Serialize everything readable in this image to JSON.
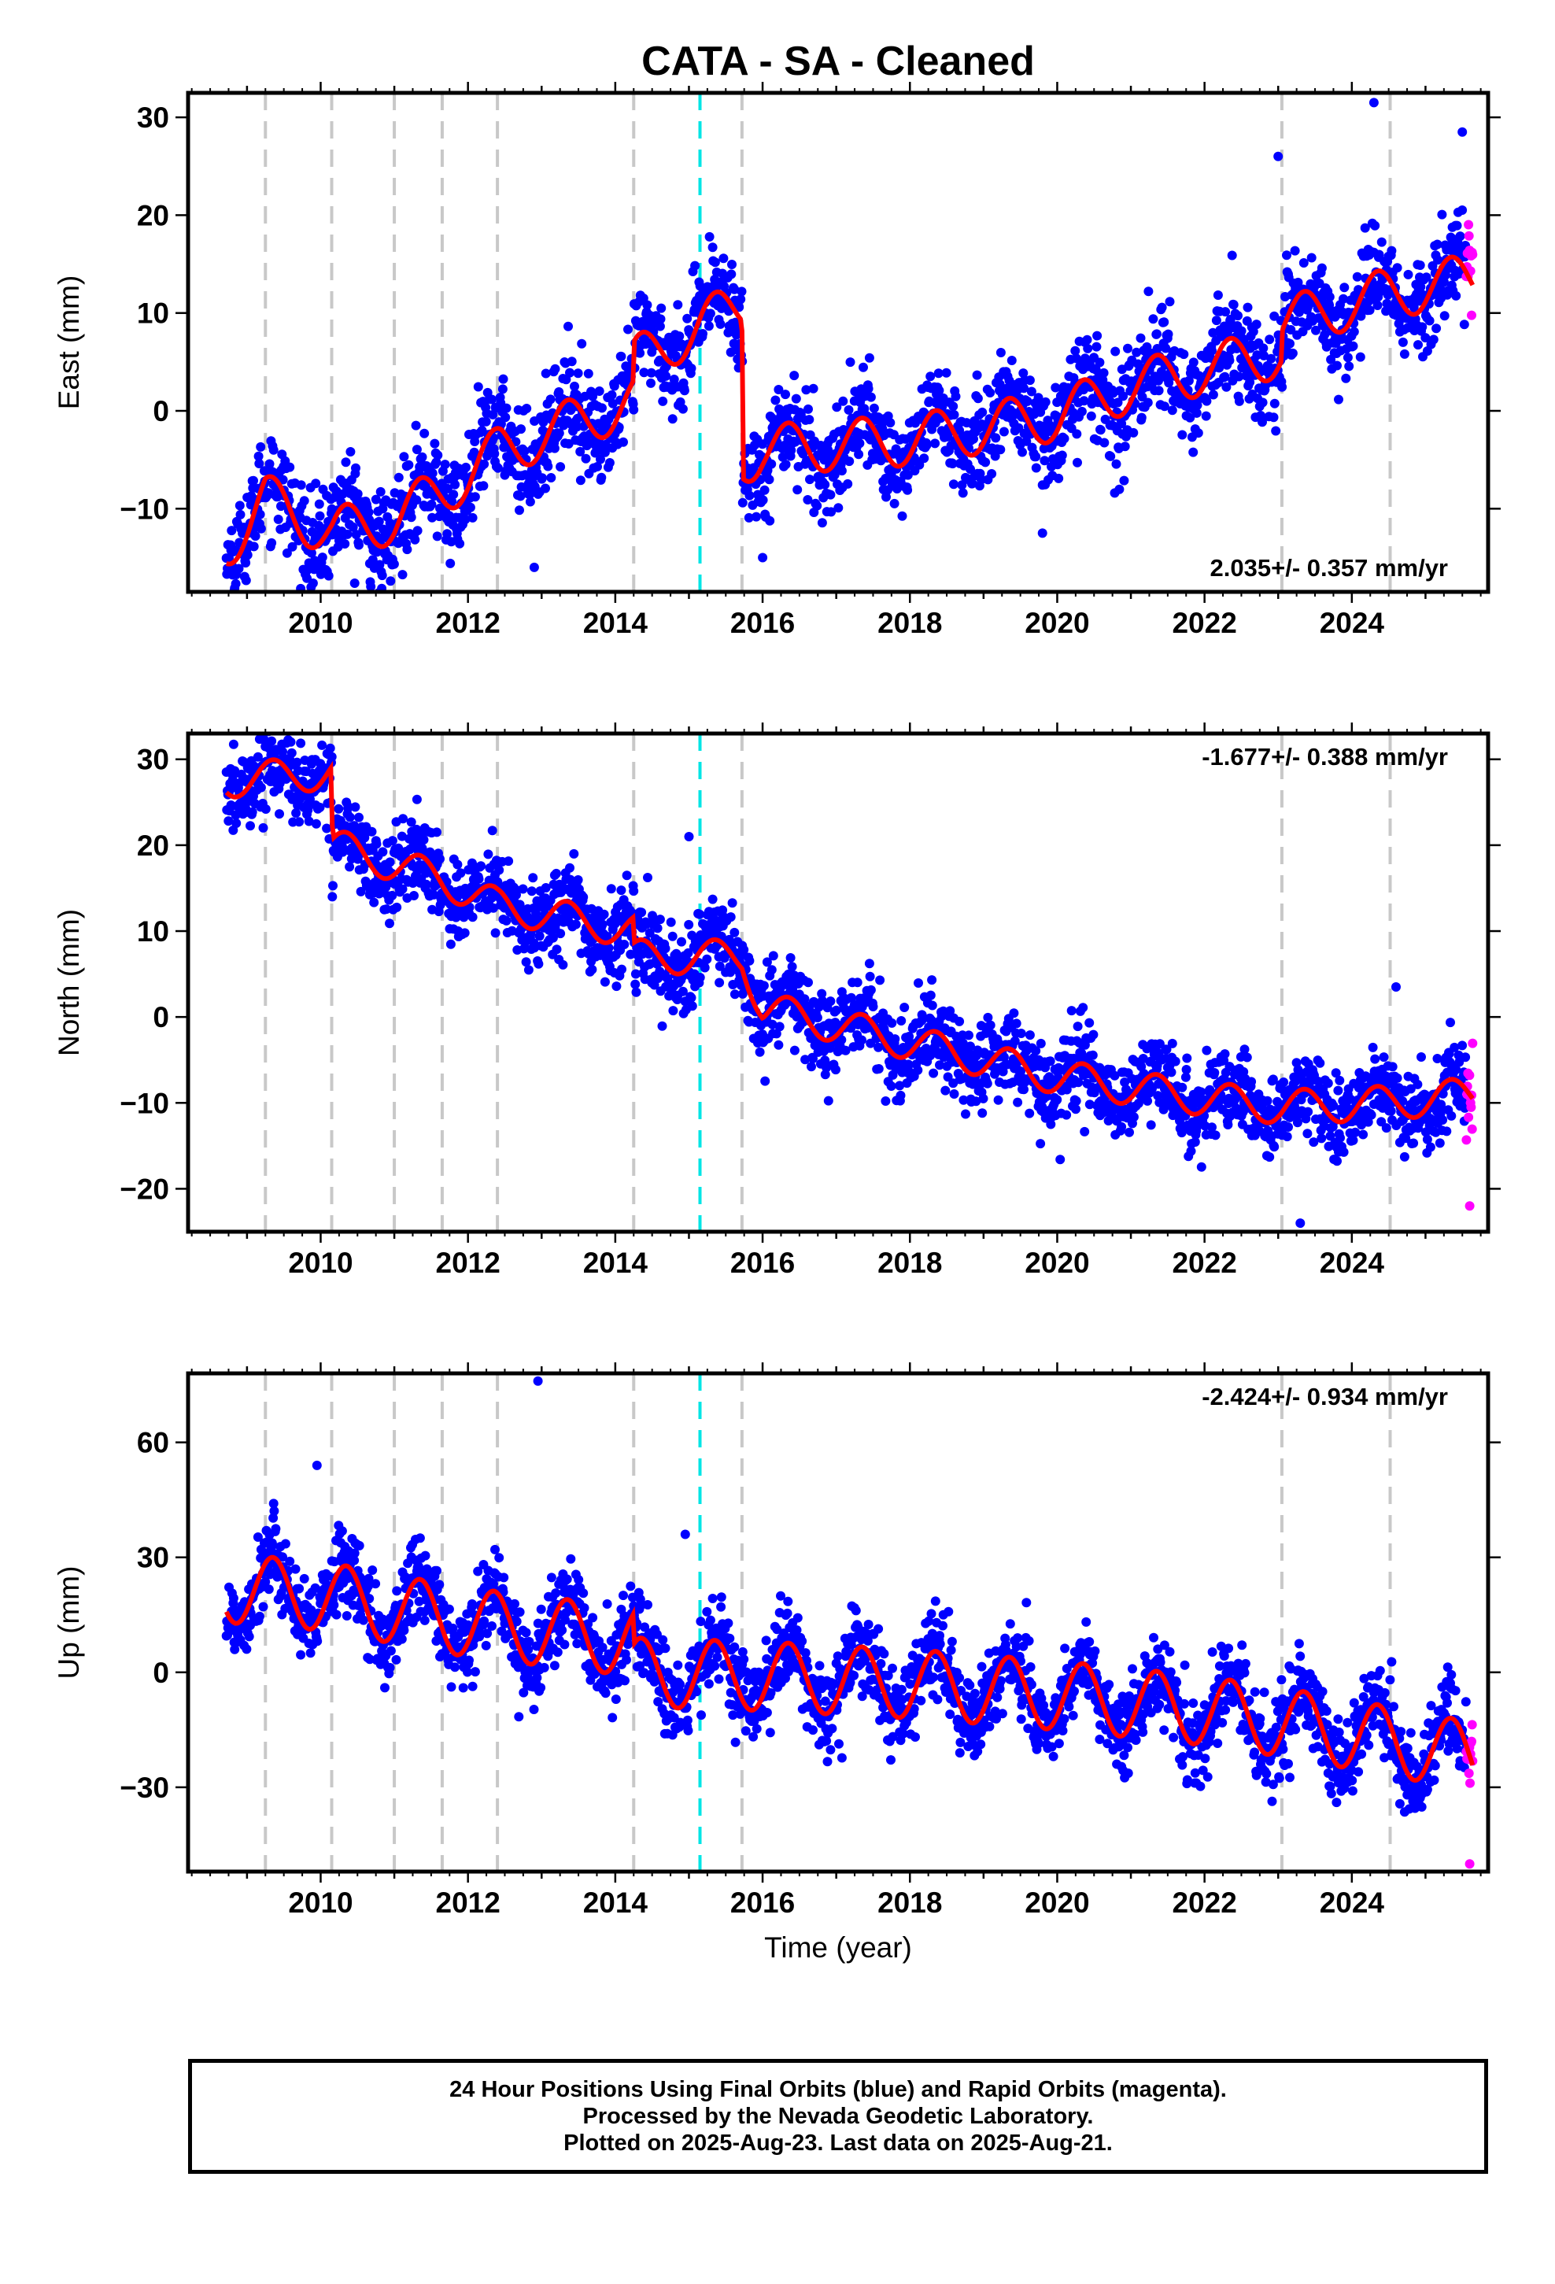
{
  "title": "CATA  - SA - Cleaned",
  "colors": {
    "final": "#0000ff",
    "rapid": "#ff00ff",
    "model": "#ff0000",
    "offset": "#c8c8c8",
    "equipment": "#00e5e5"
  },
  "xlabel": "Time (year)",
  "caption": [
    "24 Hour Positions Using Final Orbits (blue) and Rapid Orbits (magenta).",
    "Processed by the Nevada Geodetic Laboratory.",
    "Plotted on 2025-Aug-23. Last data on 2025-Aug-21."
  ],
  "chart_data": [
    {
      "type": "scatter",
      "ylabel": "East (mm)",
      "xlim": [
        2008.2,
        2025.85
      ],
      "ylim": [
        -18.5,
        32.5
      ],
      "xticks": [
        "2010",
        "2012",
        "2014",
        "2016",
        "2018",
        "2020",
        "2022",
        "2024"
      ],
      "yticks": [
        "−10",
        "0",
        "10",
        "20",
        "30"
      ],
      "ytick_values": [
        -10,
        0,
        10,
        20,
        30
      ],
      "rate_text": "2.035+/- 0.357 mm/yr",
      "rate_position": "bottom-right",
      "time_range": [
        2008.72,
        2025.64
      ],
      "rapid_from": 2025.55,
      "trend_anchors": [
        [
          2008.7,
          -14
        ],
        [
          2009.25,
          -9
        ],
        [
          2010.15,
          -12.5
        ],
        [
          2011.0,
          -11
        ],
        [
          2011.7,
          -8
        ],
        [
          2012.45,
          -4
        ],
        [
          2014.25,
          1
        ],
        [
          2014.26,
          5
        ],
        [
          2015.72,
          11
        ],
        [
          2015.73,
          -5
        ],
        [
          2016.0,
          -4
        ],
        [
          2018.0,
          -3
        ],
        [
          2020.0,
          -0.5
        ],
        [
          2021.0,
          2.5
        ],
        [
          2023.05,
          6
        ],
        [
          2023.06,
          9
        ],
        [
          2024.5,
          12
        ],
        [
          2025.64,
          13.5
        ]
      ],
      "seasonal_amplitude": 2.6,
      "scatter_sd": 2.5,
      "outliers": [
        [
          2024.3,
          31.5
        ],
        [
          2023.0,
          26
        ],
        [
          2025.5,
          28.5
        ],
        [
          2012.9,
          -16
        ],
        [
          2016.0,
          -15
        ],
        [
          2019.8,
          -12.5
        ]
      ],
      "offsets": [
        2009.25,
        2010.15,
        2011.0,
        2011.65,
        2012.4,
        2014.25,
        2015.72,
        2023.05,
        2024.52
      ],
      "equipment_changes": [
        2015.15
      ]
    },
    {
      "type": "scatter",
      "ylabel": "North (mm)",
      "xlim": [
        2008.2,
        2025.85
      ],
      "ylim": [
        -25,
        33
      ],
      "xticks": [
        "2010",
        "2012",
        "2014",
        "2016",
        "2018",
        "2020",
        "2022",
        "2024"
      ],
      "yticks": [
        "−20",
        "−10",
        "0",
        "10",
        "20",
        "30"
      ],
      "ytick_values": [
        -20,
        -10,
        0,
        10,
        20,
        30
      ],
      "rate_text": "-1.677+/- 0.388 mm/yr",
      "rate_position": "top-right",
      "time_range": [
        2008.72,
        2025.64
      ],
      "rapid_from": 2025.55,
      "trend_anchors": [
        [
          2008.7,
          27.5
        ],
        [
          2010.15,
          28.5
        ],
        [
          2010.16,
          20
        ],
        [
          2011.65,
          16
        ],
        [
          2012.4,
          13
        ],
        [
          2014.25,
          10
        ],
        [
          2014.26,
          7
        ],
        [
          2015.72,
          7
        ],
        [
          2016.0,
          1
        ],
        [
          2018.0,
          -3
        ],
        [
          2020.0,
          -7
        ],
        [
          2022.0,
          -9.5
        ],
        [
          2023.05,
          -10.5
        ],
        [
          2024.52,
          -10
        ],
        [
          2025.64,
          -9
        ]
      ],
      "seasonal_amplitude": 2.0,
      "scatter_sd": 2.4,
      "outliers": [
        [
          2015.0,
          21
        ],
        [
          2025.6,
          -22
        ],
        [
          2023.3,
          -24
        ],
        [
          2024.6,
          3.5
        ]
      ],
      "offsets": [
        2009.25,
        2010.15,
        2011.0,
        2011.65,
        2012.4,
        2014.25,
        2015.72,
        2023.05,
        2024.52
      ],
      "equipment_changes": [
        2015.15
      ]
    },
    {
      "type": "scatter",
      "ylabel": "Up (mm)",
      "xlim": [
        2008.2,
        2025.85
      ],
      "ylim": [
        -52,
        78
      ],
      "xticks": [
        "2010",
        "2012",
        "2014",
        "2016",
        "2018",
        "2020",
        "2022",
        "2024"
      ],
      "yticks": [
        "−30",
        "0",
        "30",
        "60"
      ],
      "ytick_values": [
        -30,
        0,
        30,
        60
      ],
      "rate_text": "-2.424+/- 0.934 mm/yr",
      "rate_position": "top-right",
      "time_range": [
        2008.72,
        2025.64
      ],
      "rapid_from": 2025.55,
      "trend_anchors": [
        [
          2008.7,
          22
        ],
        [
          2010.0,
          20
        ],
        [
          2012.0,
          13
        ],
        [
          2014.25,
          8
        ],
        [
          2014.26,
          0
        ],
        [
          2016.0,
          -1
        ],
        [
          2018.0,
          -3
        ],
        [
          2020.0,
          -6
        ],
        [
          2022.0,
          -10
        ],
        [
          2023.05,
          -13
        ],
        [
          2024.52,
          -18
        ],
        [
          2025.64,
          -22
        ]
      ],
      "seasonal_amplitude": 9.0,
      "scatter_sd": 5.5,
      "outliers": [
        [
          2012.95,
          76
        ],
        [
          2009.95,
          54
        ],
        [
          2014.95,
          36
        ],
        [
          2025.6,
          -50
        ]
      ],
      "offsets": [
        2009.25,
        2010.15,
        2011.0,
        2011.65,
        2012.4,
        2014.25,
        2015.72,
        2023.05,
        2024.52
      ],
      "equipment_changes": [
        2015.15
      ]
    }
  ]
}
